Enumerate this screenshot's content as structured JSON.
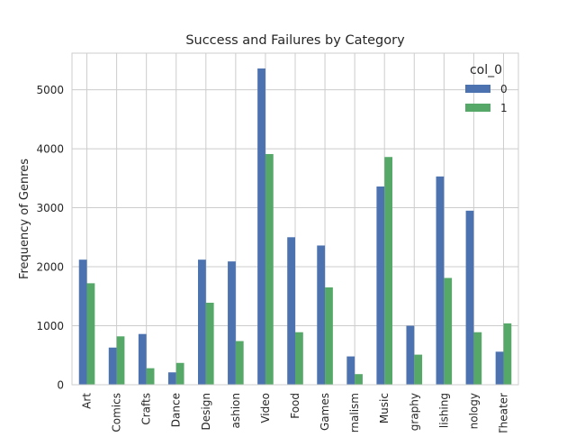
{
  "chart_data": {
    "type": "bar",
    "title": "Success and Failures by Category",
    "xlabel": "",
    "ylabel": "Frequency of Genres",
    "ylim": [
      0,
      5620
    ],
    "yticks": [
      0,
      1000,
      2000,
      3000,
      4000,
      5000
    ],
    "grid": true,
    "legend_position": "top-right",
    "legend_title": "col_0",
    "tick_labels": [
      "Art",
      "Comics",
      "Crafts",
      "Dance",
      "Design",
      "ashion",
      "Video",
      "Food",
      "Games",
      "rnalism",
      "Music",
      "graphy",
      "lishing",
      "nology",
      "Theater"
    ],
    "categories": [
      "Art",
      "Comics",
      "Crafts",
      "Dance",
      "Design",
      "Fashion",
      "Film & Video",
      "Food",
      "Games",
      "Journalism",
      "Music",
      "Photography",
      "Publishing",
      "Technology",
      "Theater"
    ],
    "series": [
      {
        "name": "0",
        "color": "#4C72B0",
        "values": [
          2120,
          630,
          860,
          210,
          2120,
          2090,
          5360,
          2500,
          2360,
          480,
          3360,
          1000,
          3530,
          2950,
          560
        ]
      },
      {
        "name": "1",
        "color": "#55A868",
        "values": [
          1720,
          820,
          280,
          370,
          1390,
          740,
          3910,
          890,
          1650,
          180,
          3860,
          510,
          1810,
          890,
          1040
        ]
      }
    ]
  }
}
